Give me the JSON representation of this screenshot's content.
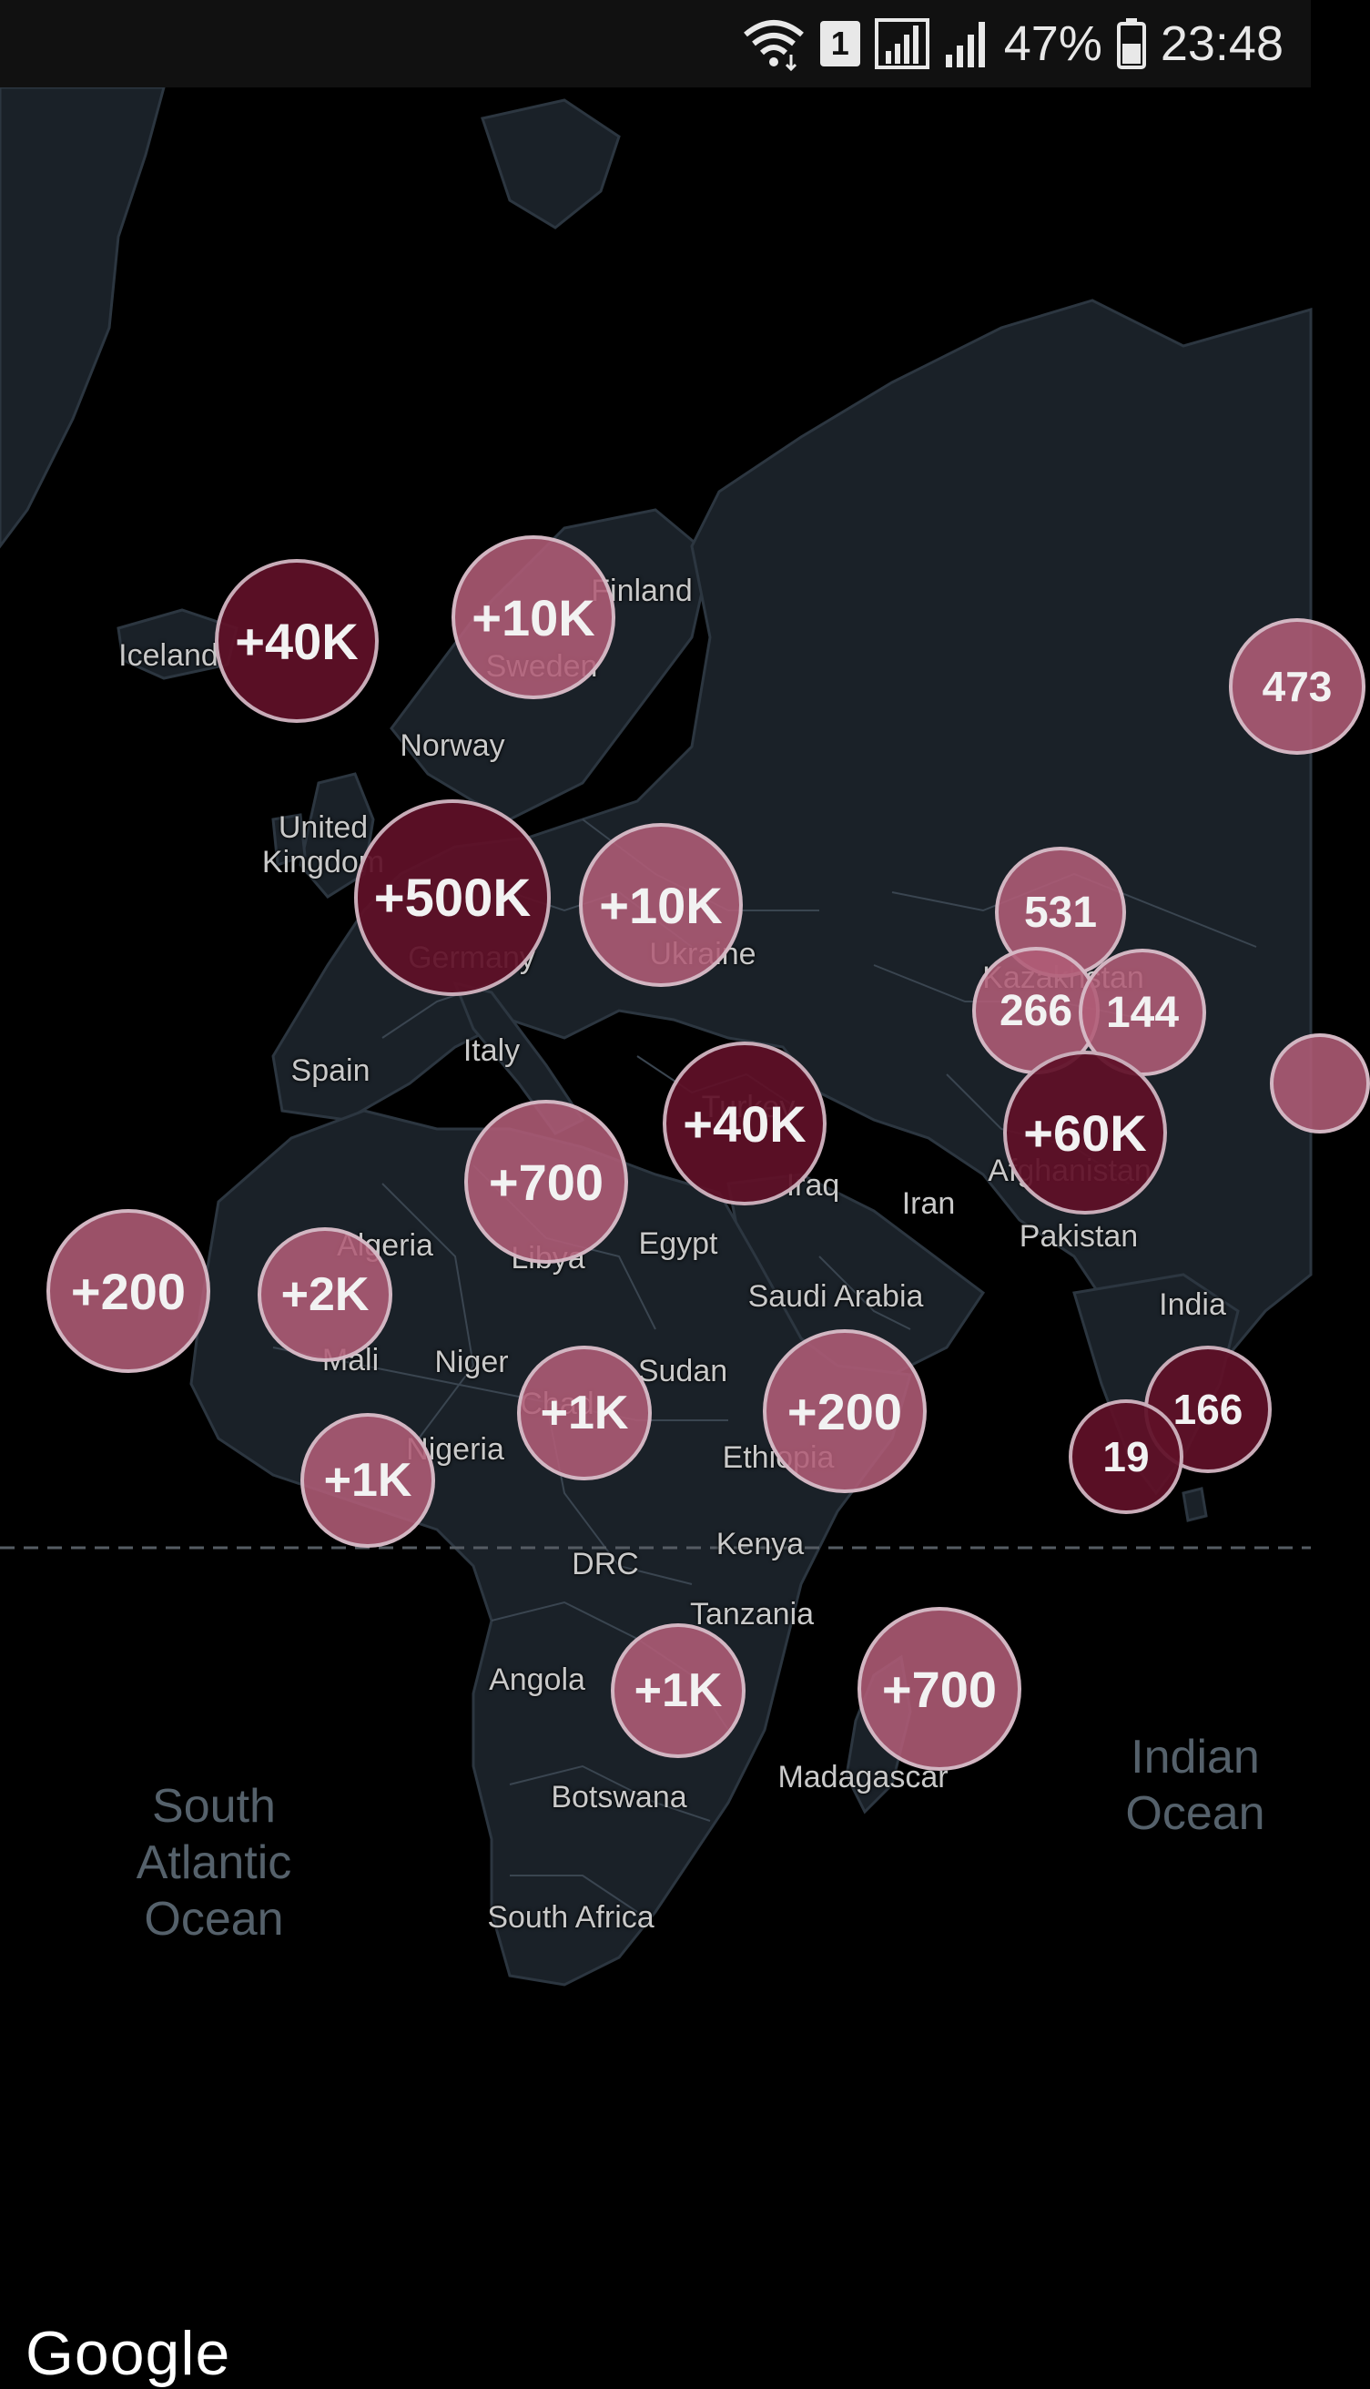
{
  "status_bar": {
    "battery_text": "47%",
    "time": "23:48",
    "sim_badge": "1",
    "icons": [
      "wifi-icon",
      "sim-icon",
      "signal-icon",
      "battery-icon"
    ]
  },
  "map": {
    "country_labels": [
      {
        "name": "Iceland"
      },
      {
        "name": "Finland"
      },
      {
        "name": "Sweden"
      },
      {
        "name": "Norway"
      },
      {
        "name": "United\nKingdom"
      },
      {
        "name": "Germany"
      },
      {
        "name": "Ukraine"
      },
      {
        "name": "Kazakhstan"
      },
      {
        "name": "Spain"
      },
      {
        "name": "Italy"
      },
      {
        "name": "Turkey"
      },
      {
        "name": "Iraq"
      },
      {
        "name": "Iran"
      },
      {
        "name": "Afghanistan"
      },
      {
        "name": "Pakistan"
      },
      {
        "name": "Algeria"
      },
      {
        "name": "Libya"
      },
      {
        "name": "Egypt"
      },
      {
        "name": "Saudi Arabia"
      },
      {
        "name": "India"
      },
      {
        "name": "Mali"
      },
      {
        "name": "Niger"
      },
      {
        "name": "Chad"
      },
      {
        "name": "Sudan"
      },
      {
        "name": "Nigeria"
      },
      {
        "name": "Ethiopia"
      },
      {
        "name": "Kenya"
      },
      {
        "name": "DRC"
      },
      {
        "name": "Tanzania"
      },
      {
        "name": "Angola"
      },
      {
        "name": "Madagascar"
      },
      {
        "name": "Botswana"
      },
      {
        "name": "South Africa"
      }
    ],
    "ocean_labels": [
      {
        "name": "South\nAtlantic\nOcean"
      },
      {
        "name": "Indian\nOcean"
      }
    ],
    "clusters": [
      {
        "label": "+40K",
        "shade": "dark"
      },
      {
        "label": "+10K",
        "shade": "light"
      },
      {
        "label": "473",
        "shade": "light"
      },
      {
        "label": "+500K",
        "shade": "dark"
      },
      {
        "label": "+10K",
        "shade": "light"
      },
      {
        "label": "531",
        "shade": "light"
      },
      {
        "label": "266",
        "shade": "light"
      },
      {
        "label": "144",
        "shade": "light"
      },
      {
        "label": "+40K",
        "shade": "dark"
      },
      {
        "label": "+60K",
        "shade": "dark"
      },
      {
        "label": "+700",
        "shade": "light"
      },
      {
        "label": "+200",
        "shade": "light"
      },
      {
        "label": "+2K",
        "shade": "light"
      },
      {
        "label": "+1K",
        "shade": "light"
      },
      {
        "label": "+200",
        "shade": "light"
      },
      {
        "label": "166",
        "shade": "dark"
      },
      {
        "label": "19",
        "shade": "dark"
      },
      {
        "label": "+1K",
        "shade": "light"
      },
      {
        "label": "+1K",
        "shade": "light"
      },
      {
        "label": "+700",
        "shade": "light"
      },
      {
        "label": "",
        "shade": "light"
      }
    ]
  },
  "attribution": {
    "logo_text": "Google"
  }
}
